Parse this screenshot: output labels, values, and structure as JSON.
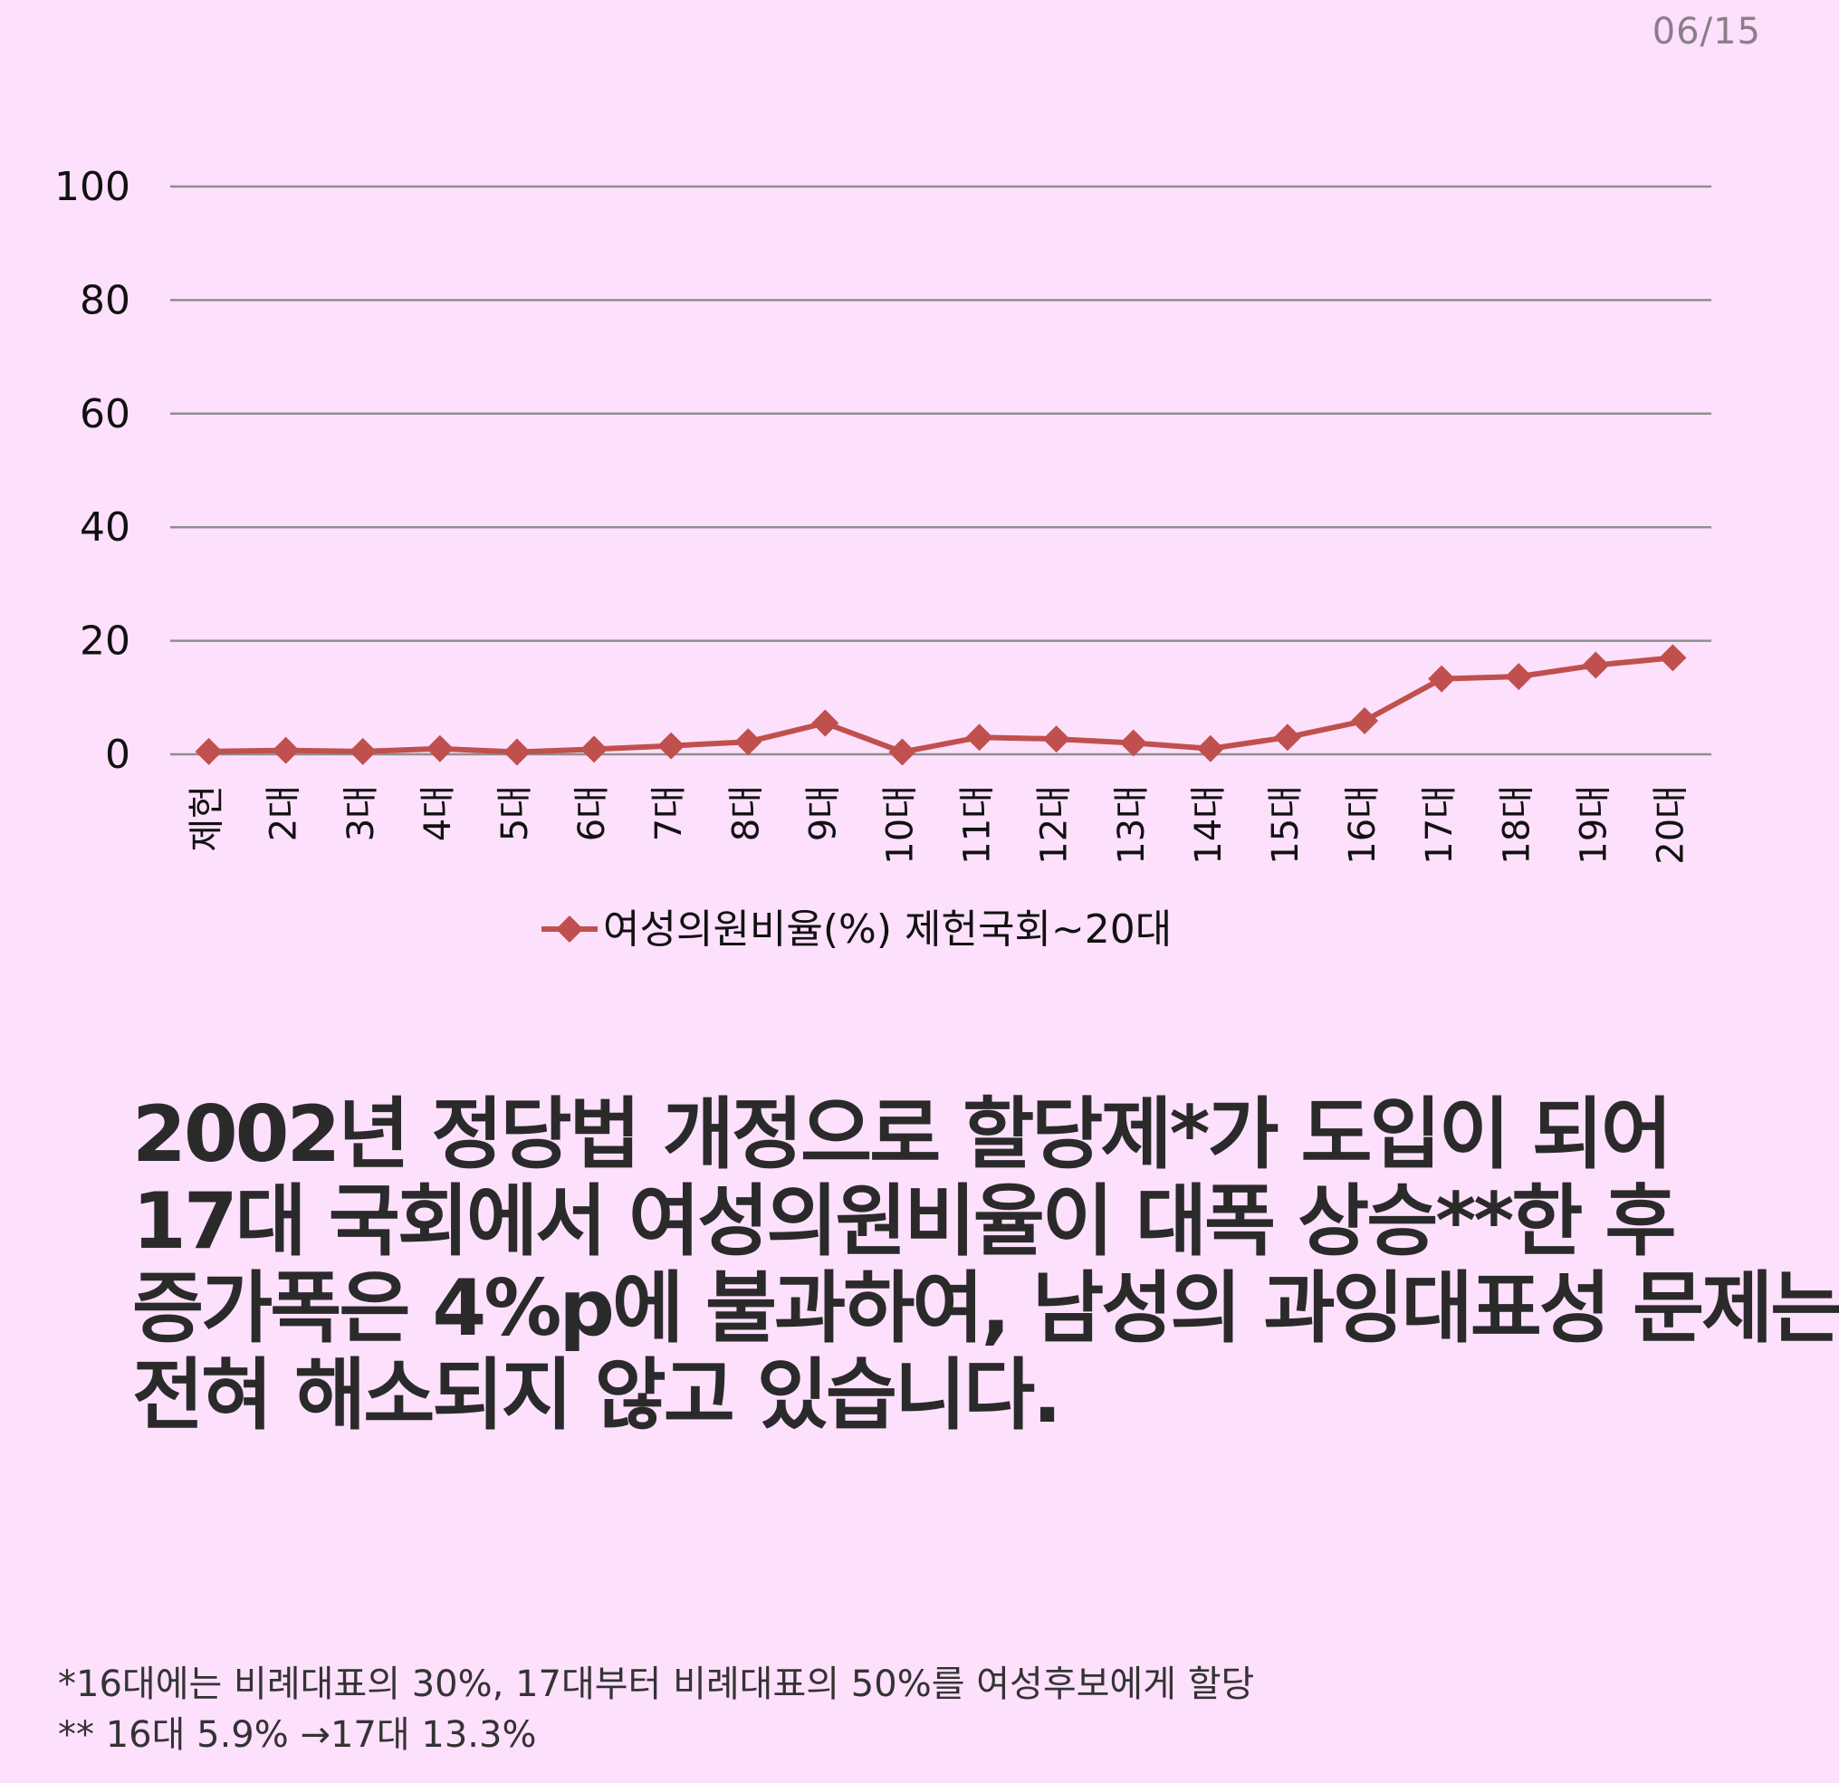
{
  "page_number": "06/15",
  "chart_data": {
    "type": "line",
    "categories": [
      "제헌",
      "2대",
      "3대",
      "4대",
      "5대",
      "6대",
      "7대",
      "8대",
      "9대",
      "10대",
      "11대",
      "12대",
      "13대",
      "14대",
      "15대",
      "16대",
      "17대",
      "18대",
      "19대",
      "20대"
    ],
    "series": [
      {
        "name": "여성의원비율(%) 제헌국회~20대",
        "values": [
          0.5,
          0.7,
          0.5,
          1.0,
          0.4,
          0.9,
          1.5,
          2.2,
          5.5,
          0.4,
          3.0,
          2.7,
          2.0,
          1.0,
          3.0,
          5.9,
          13.3,
          13.7,
          15.7,
          17.0
        ],
        "color": "#c0504d"
      }
    ],
    "yticks": [
      "0",
      "20",
      "40",
      "60",
      "80",
      "100"
    ],
    "ylim": [
      0,
      100
    ],
    "grid": true,
    "legend": "bottom",
    "gridline_color": "#8e8e8e"
  },
  "headline": [
    "2002년 정당법 개정으로 할당제*가 도입이 되어",
    "17대 국회에서 여성의원비율이 대폭 상승**한 후",
    "증가폭은 4%p에 불과하여, 남성의 과잉대표성 문제는",
    "전혀 해소되지 않고 있습니다."
  ],
  "footnotes": [
    "*16대에는 비례대표의 30%, 17대부터 비례대표의 50%를 여성후보에게 할당",
    "** 16대 5.9% →17대  13.3%"
  ]
}
